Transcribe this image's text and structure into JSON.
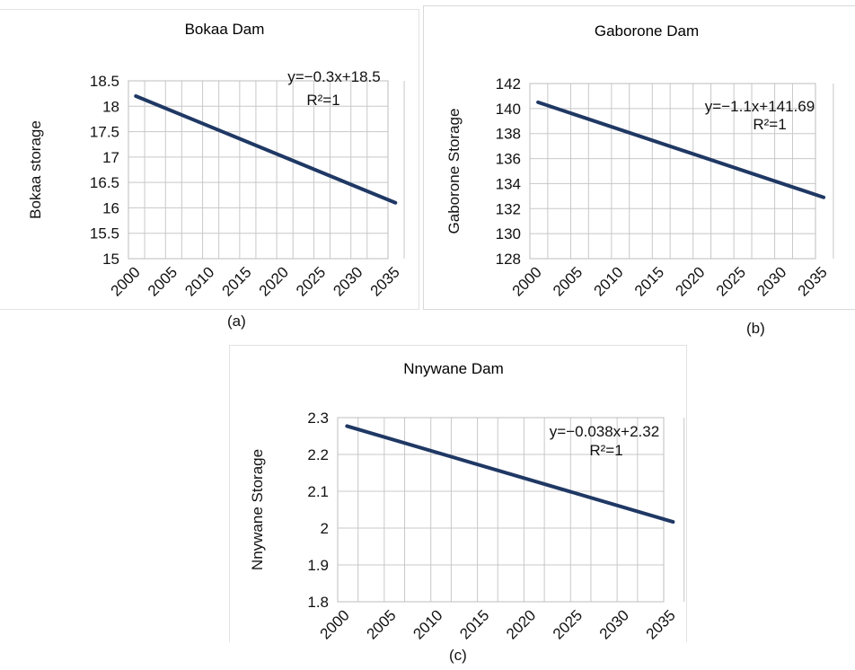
{
  "chart_data": [
    {
      "type": "line",
      "title": "Bokaa Dam",
      "ylabel": "Bokaa storage",
      "xlabel": "",
      "panel_label": "(a)",
      "x_ticks": [
        "2000",
        "2005",
        "2010",
        "2015",
        "2020",
        "2025",
        "2030",
        "2035"
      ],
      "y_ticks": [
        "15",
        "15.5",
        "16",
        "16.5",
        "17",
        "17.5",
        "18",
        "18.5"
      ],
      "ylim": [
        15,
        18.5
      ],
      "xlim": [
        2000,
        2035
      ],
      "equation": "y=−0.3x+18.5",
      "r2": "R²=1",
      "series": [
        {
          "x": [
            2001,
            2036
          ],
          "values": [
            18.2,
            16.1
          ]
        }
      ],
      "line_color": "#1f3864",
      "grid": true
    },
    {
      "type": "line",
      "title": "Gaborone Dam",
      "ylabel": "Gaborone Storage",
      "xlabel": "",
      "panel_label": "(b)",
      "x_ticks": [
        "2000",
        "2005",
        "2010",
        "2015",
        "2020",
        "2025",
        "2030",
        "2035"
      ],
      "y_ticks": [
        "128",
        "130",
        "132",
        "134",
        "136",
        "138",
        "140",
        "142"
      ],
      "ylim": [
        128,
        142
      ],
      "xlim": [
        2000,
        2035
      ],
      "equation": "y=−1.1x+141.69",
      "r2": "R²=1",
      "series": [
        {
          "x": [
            2001,
            2036
          ],
          "values": [
            140.5,
            132.9
          ]
        }
      ],
      "line_color": "#1f3864",
      "grid": true
    },
    {
      "type": "line",
      "title": "Nnywane Dam",
      "ylabel": "Nnywane Storage",
      "xlabel": "",
      "panel_label": "(c)",
      "x_ticks": [
        "2000",
        "2005",
        "2010",
        "2015",
        "2020",
        "2025",
        "2030",
        "2035"
      ],
      "y_ticks": [
        "1.8",
        "1.9",
        "2",
        "2.1",
        "2.2",
        "2.3"
      ],
      "ylim": [
        1.8,
        2.3
      ],
      "xlim": [
        2000,
        2035
      ],
      "equation": "y=−0.038x+2.32",
      "r2": "R²=1",
      "series": [
        {
          "x": [
            2001,
            2036
          ],
          "values": [
            2.277,
            2.017
          ]
        }
      ],
      "line_color": "#1f3864",
      "grid": true
    }
  ]
}
